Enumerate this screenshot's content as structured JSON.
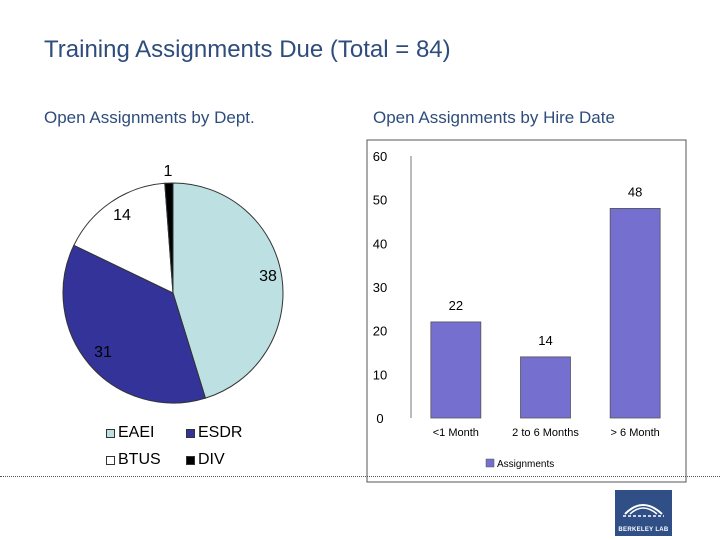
{
  "title": "Training Assignments Due (Total = 84)",
  "colors": {
    "title": "#2e4d7c",
    "eaei": "#bde0e2",
    "esdr": "#333399",
    "btus": "#ffffff",
    "div": "#000000",
    "bar": "#7570cf",
    "logo": "#2f4f86"
  },
  "logo": {
    "text": "BERKELEY LAB"
  },
  "chart_data": [
    {
      "type": "pie",
      "title": "Open Assignments by Dept.",
      "slices": [
        {
          "label": "EAEI",
          "value": 38,
          "color": "#bde0e2"
        },
        {
          "label": "ESDR",
          "value": 31,
          "color": "#333399"
        },
        {
          "label": "BTUS",
          "value": 14,
          "color": "#ffffff"
        },
        {
          "label": "DIV",
          "value": 1,
          "color": "#000000"
        }
      ],
      "legend": "bottom"
    },
    {
      "type": "bar",
      "title": "Open Assignments by Hire Date",
      "categories": [
        "<1 Month",
        "2 to 6 Months",
        "> 6 Month"
      ],
      "series": [
        {
          "name": "Assignments",
          "values": [
            22,
            14,
            48
          ],
          "color": "#7570cf"
        }
      ],
      "ylim": [
        0,
        60
      ],
      "yticks": [
        "0",
        "10",
        "20",
        "30",
        "40",
        "50",
        "60"
      ],
      "grid": false,
      "legend": "bottom"
    }
  ]
}
